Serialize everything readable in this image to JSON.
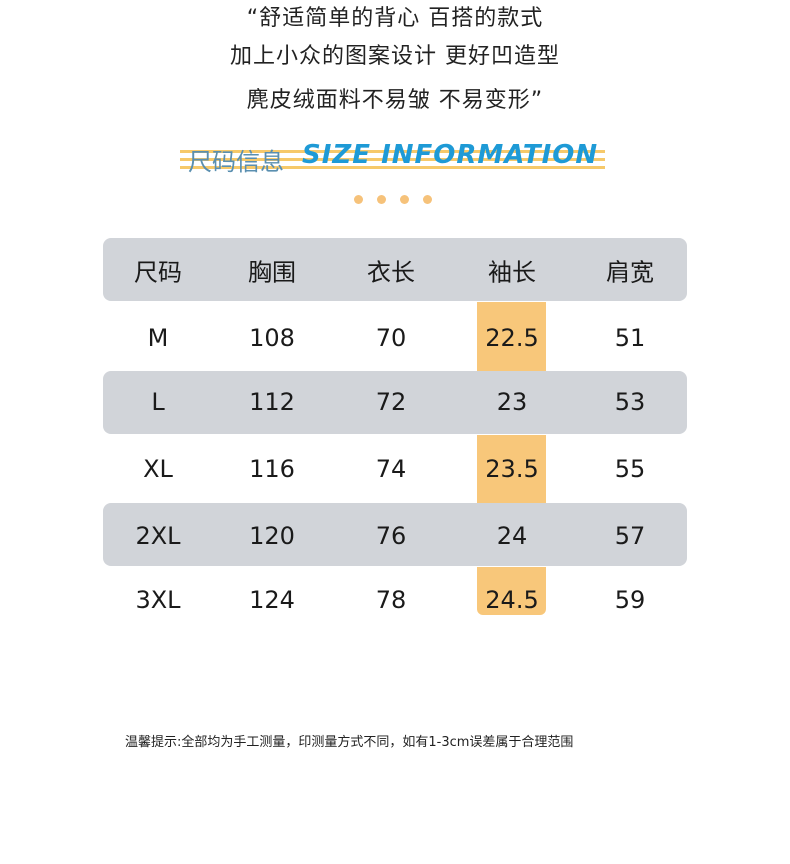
{
  "intro": {
    "lines": [
      "“舒适简单的背心 百搭的款式",
      "加上小众的图案设计 更好凹造型",
      "麂皮绒面料不易皱 不易变形”"
    ]
  },
  "heading": {
    "title_cn": "尺码信息",
    "title_en": "SIZE INFORMATION"
  },
  "table": {
    "header": [
      "尺码",
      "胸围",
      "衣长",
      "袖长",
      "肩宽"
    ],
    "rows": [
      [
        "M",
        "108",
        "70",
        "22.5",
        "51"
      ],
      [
        "L",
        "112",
        "72",
        "23",
        "53"
      ],
      [
        "XL",
        "116",
        "74",
        "23.5",
        "55"
      ],
      [
        "2XL",
        "120",
        "76",
        "24",
        "57"
      ],
      [
        "3XL",
        "124",
        "78",
        "24.5",
        "59"
      ]
    ]
  },
  "footnote": "温馨提示:全部均为手工测量，印测量方式不同，如有1-3cm误差属于合理范围"
}
